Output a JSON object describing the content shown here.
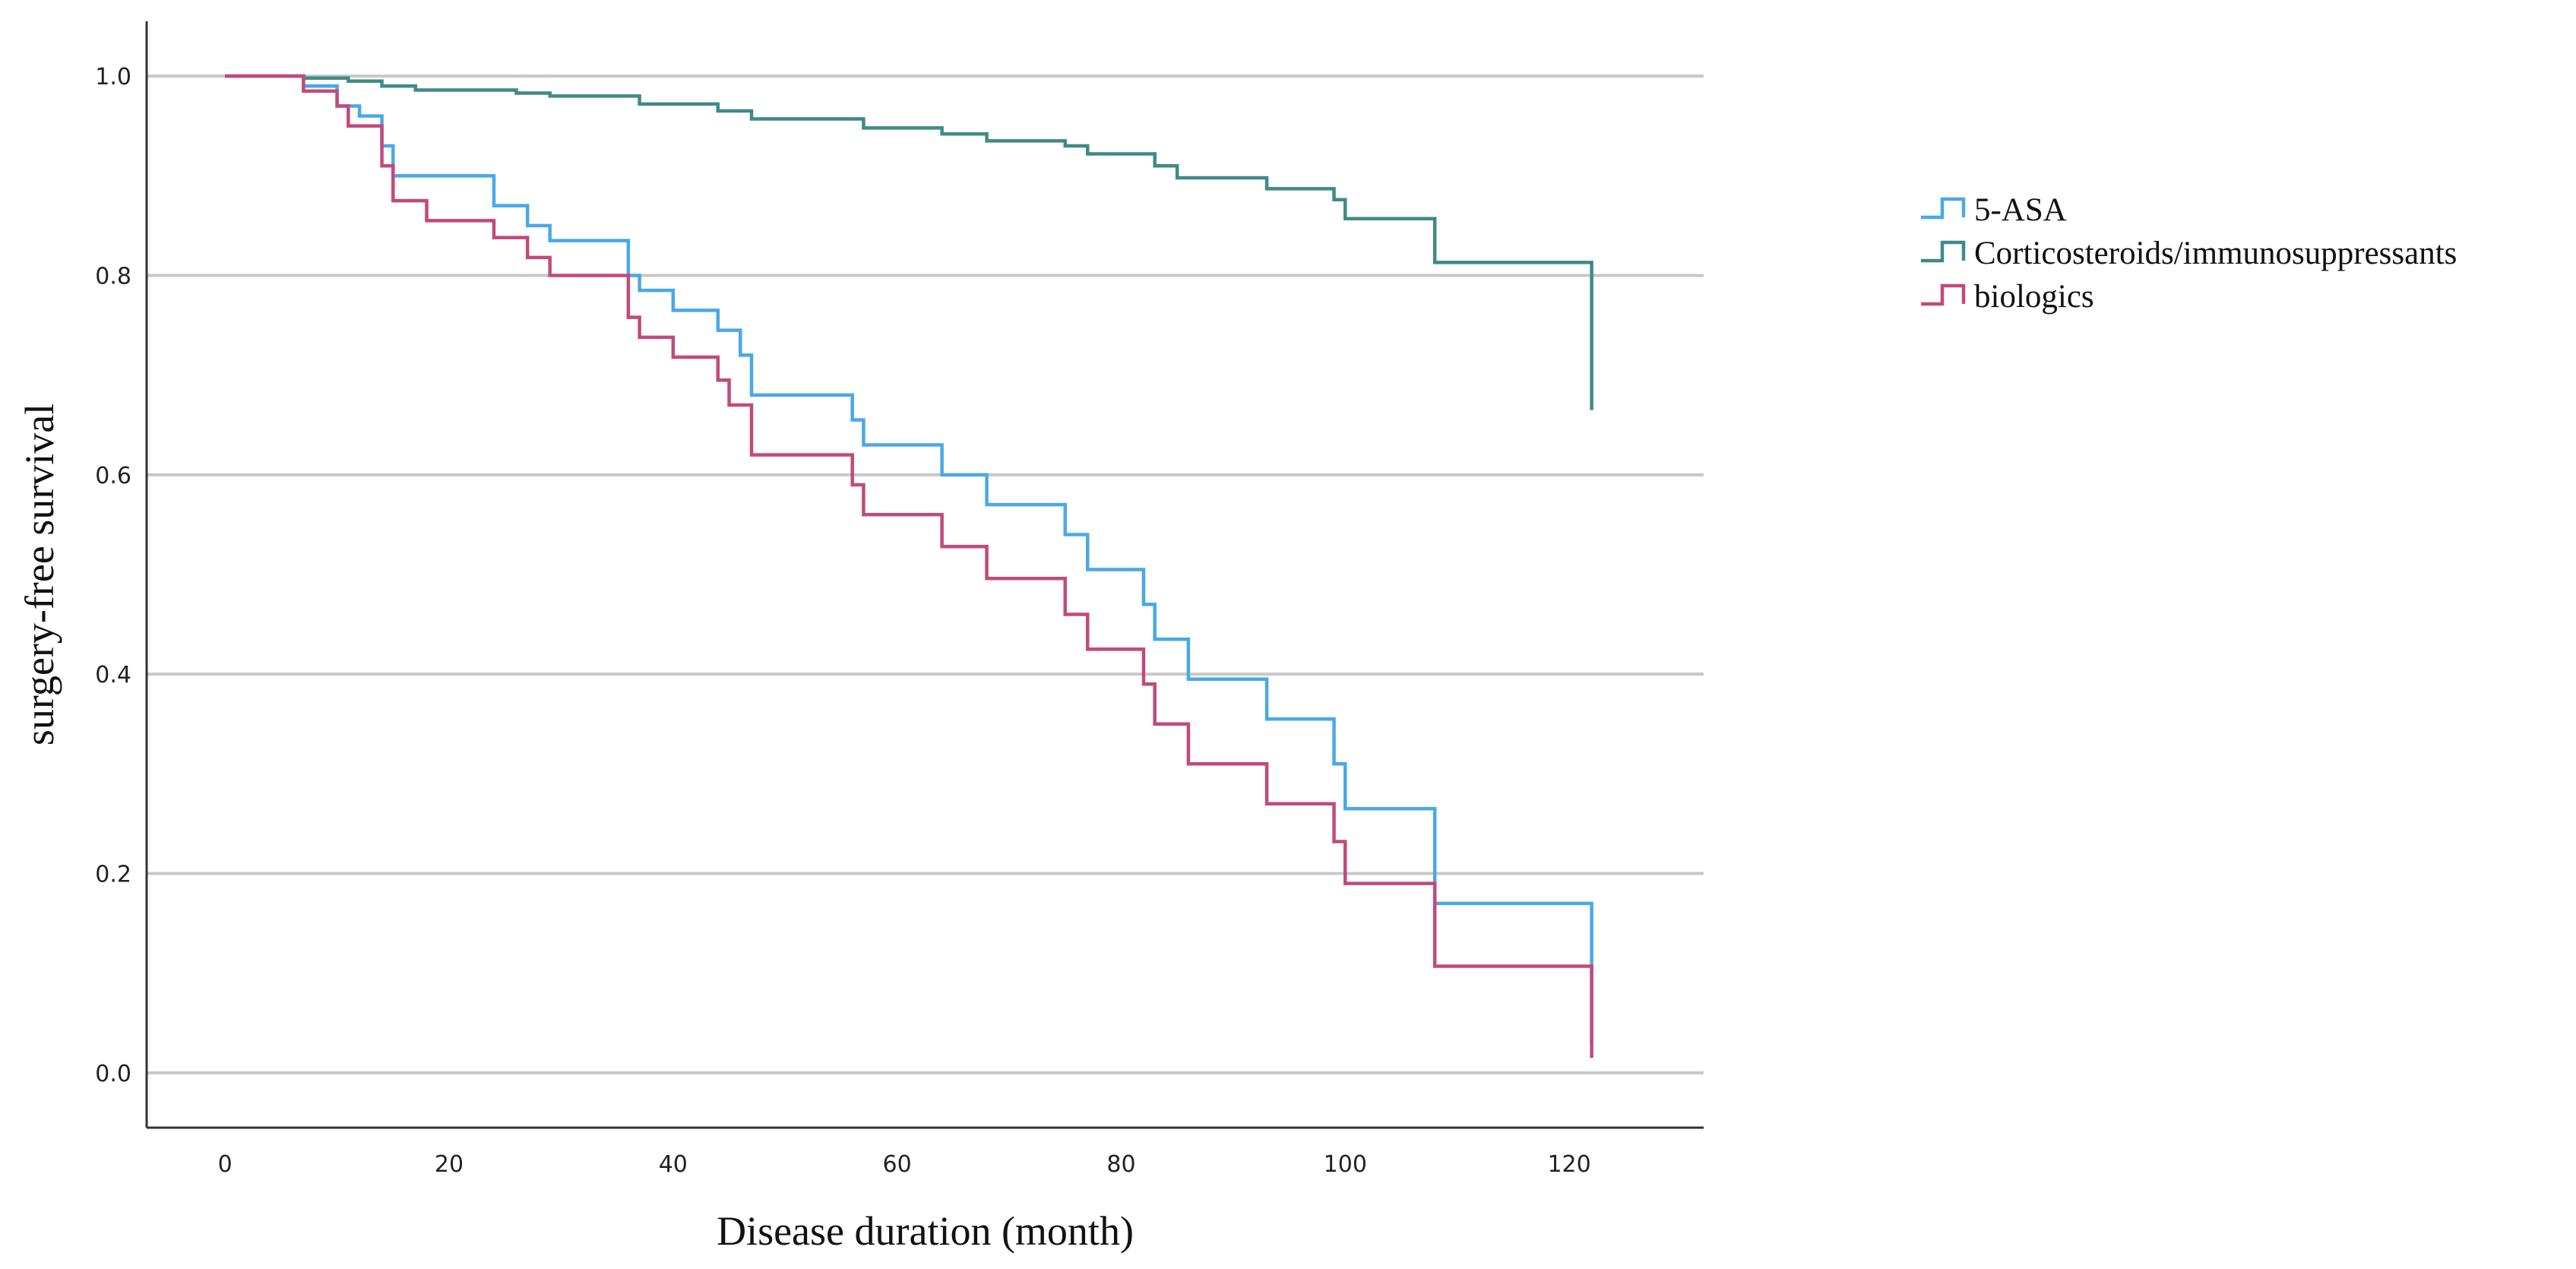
{
  "chart_data": {
    "type": "line",
    "step": true,
    "title": "",
    "xlabel": "Disease duration (month)",
    "ylabel": "surgery-free survival",
    "xlim": [
      -7,
      132
    ],
    "ylim": [
      -0.055,
      1.055
    ],
    "xticks": [
      0,
      20,
      40,
      60,
      80,
      100,
      120
    ],
    "yticks": [
      0.0,
      0.2,
      0.4,
      0.6,
      0.8,
      1.0
    ],
    "xtick_labels": [
      "0",
      "20",
      "40",
      "60",
      "80",
      "100",
      "120"
    ],
    "ytick_labels": [
      "0.0",
      "0.2",
      "0.4",
      "0.6",
      "0.8",
      "1.0"
    ],
    "grid": "horizontal",
    "legend_position": "right",
    "series": [
      {
        "name": "5-ASA",
        "color": "#4aa8e8",
        "x": [
          0,
          7,
          10,
          12,
          14,
          15,
          24,
          27,
          29,
          36,
          37,
          40,
          44,
          46,
          47,
          56,
          57,
          64,
          68,
          75,
          77,
          82,
          83,
          86,
          93,
          99,
          100,
          108,
          122,
          122
        ],
        "y": [
          1.0,
          0.99,
          0.97,
          0.96,
          0.93,
          0.9,
          0.87,
          0.85,
          0.835,
          0.8,
          0.785,
          0.765,
          0.745,
          0.72,
          0.68,
          0.655,
          0.63,
          0.6,
          0.57,
          0.54,
          0.505,
          0.47,
          0.435,
          0.395,
          0.355,
          0.31,
          0.265,
          0.17,
          0.11,
          0.03
        ]
      },
      {
        "name": "Corticosteroids/immunosuppressants",
        "color": "#3f8a86",
        "x": [
          0,
          7,
          11,
          14,
          17,
          26,
          29,
          37,
          44,
          47,
          57,
          64,
          68,
          75,
          77,
          83,
          85,
          93,
          99,
          100,
          108,
          122
        ],
        "y": [
          1.0,
          0.998,
          0.995,
          0.99,
          0.986,
          0.983,
          0.98,
          0.972,
          0.965,
          0.957,
          0.948,
          0.942,
          0.935,
          0.93,
          0.922,
          0.91,
          0.898,
          0.887,
          0.876,
          0.857,
          0.813,
          0.665
        ]
      },
      {
        "name": "biologics",
        "color": "#c24a78",
        "x": [
          0,
          7,
          10,
          11,
          14,
          15,
          18,
          24,
          27,
          29,
          36,
          37,
          40,
          44,
          45,
          47,
          56,
          57,
          64,
          68,
          75,
          77,
          82,
          83,
          86,
          93,
          99,
          100,
          108,
          122
        ],
        "y": [
          1.0,
          0.985,
          0.97,
          0.95,
          0.91,
          0.875,
          0.855,
          0.838,
          0.818,
          0.8,
          0.758,
          0.738,
          0.718,
          0.695,
          0.67,
          0.62,
          0.59,
          0.56,
          0.528,
          0.496,
          0.46,
          0.425,
          0.39,
          0.35,
          0.31,
          0.27,
          0.232,
          0.19,
          0.107,
          0.015
        ]
      }
    ]
  }
}
